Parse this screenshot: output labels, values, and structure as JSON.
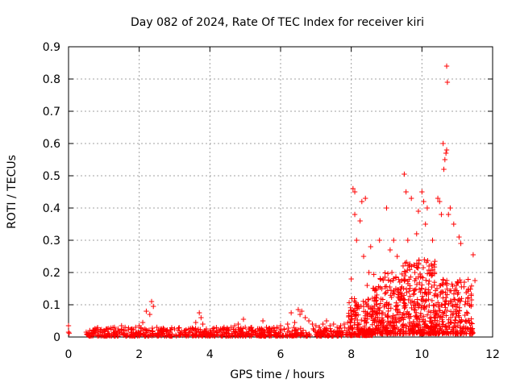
{
  "chart_data": {
    "type": "scatter",
    "title": "Day 082 of 2024, Rate Of TEC Index for receiver kiri",
    "xlabel": "GPS time / hours",
    "ylabel": "ROTI / TECUs",
    "xlim": [
      0,
      12
    ],
    "ylim": [
      0,
      0.9
    ],
    "xticks": [
      0,
      2,
      4,
      6,
      8,
      10,
      12
    ],
    "xtick_labels": [
      "0",
      "2",
      "4",
      "6",
      "8",
      "10",
      "12"
    ],
    "yticks": [
      0,
      0.1,
      0.2,
      0.3,
      0.4,
      0.5,
      0.6,
      0.7,
      0.8,
      0.9
    ],
    "ytick_labels": [
      "0",
      "0.1",
      "0.2",
      "0.3",
      "0.4",
      "0.5",
      "0.6",
      "0.7",
      "0.8",
      "0.9"
    ],
    "grid": true,
    "marker": "+",
    "color": "#ff0000",
    "series": [
      {
        "name": "ROTI",
        "x": [
          0.0,
          0.0,
          0.02,
          0.5,
          0.6,
          0.7,
          0.8,
          0.9,
          1.0,
          1.1,
          1.2,
          1.3,
          1.4,
          1.5,
          1.6,
          1.7,
          1.8,
          1.9,
          2.0,
          2.1,
          2.2,
          2.3,
          2.35,
          2.4,
          2.5,
          2.6,
          2.7,
          2.8,
          2.9,
          3.0,
          3.1,
          3.2,
          3.3,
          3.4,
          3.5,
          3.6,
          3.7,
          3.75,
          3.8,
          3.9,
          4.0,
          4.1,
          4.2,
          4.3,
          4.4,
          4.5,
          4.6,
          4.7,
          4.8,
          4.95,
          5.0,
          5.1,
          5.2,
          5.3,
          5.4,
          5.5,
          5.6,
          5.7,
          5.8,
          5.9,
          6.0,
          6.1,
          6.2,
          6.3,
          6.4,
          6.5,
          6.55,
          6.6,
          6.7,
          6.8,
          6.9,
          7.0,
          7.1,
          7.2,
          7.3,
          7.4,
          7.5,
          7.6,
          7.7,
          7.8,
          7.9,
          8.0,
          8.05,
          8.1,
          8.1,
          8.15,
          8.2,
          8.25,
          8.3,
          8.35,
          8.4,
          8.45,
          8.5,
          8.55,
          8.6,
          8.7,
          8.8,
          8.9,
          9.0,
          9.05,
          9.1,
          9.15,
          9.2,
          9.3,
          9.4,
          9.5,
          9.55,
          9.6,
          9.7,
          9.8,
          9.85,
          9.9,
          10.0,
          10.0,
          10.05,
          10.1,
          10.15,
          10.2,
          10.3,
          10.4,
          10.45,
          10.5,
          10.55,
          10.6,
          10.62,
          10.65,
          10.68,
          10.7,
          10.7,
          10.72,
          10.75,
          10.8,
          10.9,
          11.0,
          11.05,
          11.1,
          11.2,
          11.3,
          11.4,
          11.45,
          11.5
        ],
        "y": [
          0.015,
          0.035,
          0.012,
          0.015,
          0.02,
          0.018,
          0.025,
          0.022,
          0.02,
          0.025,
          0.028,
          0.03,
          0.025,
          0.035,
          0.03,
          0.028,
          0.025,
          0.03,
          0.035,
          0.045,
          0.08,
          0.07,
          0.11,
          0.095,
          0.03,
          0.025,
          0.02,
          0.018,
          0.022,
          0.025,
          0.02,
          0.018,
          0.02,
          0.025,
          0.028,
          0.045,
          0.075,
          0.06,
          0.04,
          0.025,
          0.02,
          0.018,
          0.02,
          0.025,
          0.03,
          0.025,
          0.03,
          0.035,
          0.04,
          0.055,
          0.03,
          0.025,
          0.02,
          0.018,
          0.025,
          0.05,
          0.03,
          0.025,
          0.02,
          0.03,
          0.035,
          0.025,
          0.04,
          0.075,
          0.045,
          0.085,
          0.07,
          0.08,
          0.06,
          0.05,
          0.04,
          0.035,
          0.03,
          0.04,
          0.05,
          0.035,
          0.04,
          0.03,
          0.035,
          0.04,
          0.045,
          0.18,
          0.46,
          0.45,
          0.38,
          0.3,
          0.1,
          0.36,
          0.42,
          0.25,
          0.43,
          0.16,
          0.2,
          0.28,
          0.12,
          0.15,
          0.3,
          0.18,
          0.4,
          0.1,
          0.27,
          0.2,
          0.3,
          0.25,
          0.15,
          0.505,
          0.45,
          0.3,
          0.43,
          0.2,
          0.32,
          0.39,
          0.45,
          0.15,
          0.42,
          0.35,
          0.4,
          0.22,
          0.3,
          0.1,
          0.43,
          0.42,
          0.38,
          0.6,
          0.52,
          0.55,
          0.57,
          0.58,
          0.84,
          0.79,
          0.38,
          0.4,
          0.35,
          0.1,
          0.31,
          0.29,
          0.17,
          0.12,
          0.1,
          0.255,
          0.175
        ]
      }
    ],
    "dense_bands": [
      {
        "x_start": 0.5,
        "x_end": 7.9,
        "y_min": 0.003,
        "y_max": 0.03,
        "count": 620
      },
      {
        "x_start": 7.9,
        "x_end": 8.6,
        "y_min": 0.005,
        "y_max": 0.12,
        "count": 180
      },
      {
        "x_start": 8.6,
        "x_end": 9.4,
        "y_min": 0.01,
        "y_max": 0.2,
        "count": 230
      },
      {
        "x_start": 9.4,
        "x_end": 10.4,
        "y_min": 0.01,
        "y_max": 0.24,
        "count": 320
      },
      {
        "x_start": 10.4,
        "x_end": 11.45,
        "y_min": 0.01,
        "y_max": 0.18,
        "count": 240
      }
    ]
  }
}
